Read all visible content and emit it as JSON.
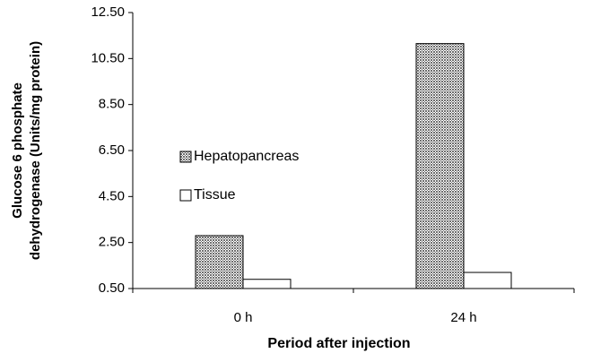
{
  "chart_data": {
    "type": "bar",
    "ylabel": [
      "Glucose 6 phosphate",
      "dehydrogenase (Units/mg protein)"
    ],
    "xlabel": "Period after injection",
    "categories": [
      "0 h",
      "24 h"
    ],
    "series": [
      {
        "name": "Hepatopancreas",
        "color": "#6e6e6e",
        "values": [
          2.8,
          11.15
        ]
      },
      {
        "name": "Tissue",
        "color": "#ffffff",
        "values": [
          0.9,
          1.2
        ]
      }
    ],
    "ylim": [
      0.5,
      12.5
    ],
    "yticks": [
      {
        "value": 0.5,
        "label": "0.50"
      },
      {
        "value": 2.5,
        "label": "2.50"
      },
      {
        "value": 4.5,
        "label": "4.50"
      },
      {
        "value": 6.5,
        "label": "6.50"
      },
      {
        "value": 8.5,
        "label": "8.50"
      },
      {
        "value": 10.5,
        "label": "10.50"
      },
      {
        "value": 12.5,
        "label": "12.50"
      }
    ],
    "grid": false
  }
}
